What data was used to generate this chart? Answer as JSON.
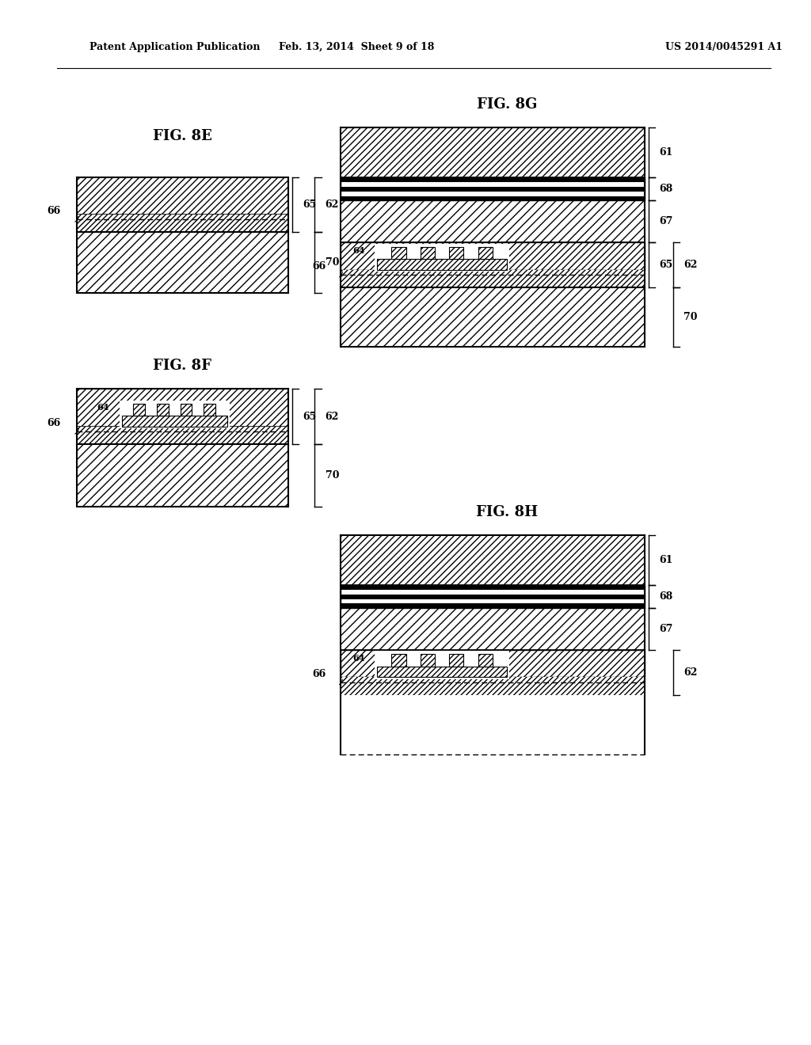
{
  "bg_color": "#ffffff",
  "header_left": "Patent Application Publication",
  "header_mid": "Feb. 13, 2014  Sheet 9 of 18",
  "header_right": "US 2014/0045291 A1"
}
